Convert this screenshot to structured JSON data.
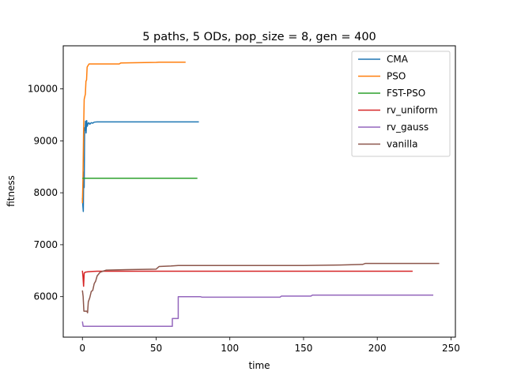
{
  "chart_data": {
    "type": "line",
    "title": "5 paths, 5 ODs, pop_size = 8, gen = 400",
    "xlabel": "time",
    "ylabel": "fitness",
    "xlim": [
      -13,
      253
    ],
    "ylim": [
      5220,
      10830
    ],
    "xticks": [
      0,
      50,
      100,
      150,
      200,
      250
    ],
    "yticks": [
      6000,
      7000,
      8000,
      9000,
      10000
    ],
    "grid": false,
    "legend_position": "top-right",
    "series": [
      {
        "name": "CMA",
        "color": "#1f77b4",
        "points": [
          [
            0,
            7900
          ],
          [
            0.3,
            7750
          ],
          [
            0.6,
            7640
          ],
          [
            0.9,
            8400
          ],
          [
            1.2,
            8100
          ],
          [
            1.5,
            9250
          ],
          [
            1.8,
            9200
          ],
          [
            2.1,
            9380
          ],
          [
            2.5,
            9150
          ],
          [
            2.9,
            9390
          ],
          [
            3.3,
            9280
          ],
          [
            3.8,
            9330
          ],
          [
            4.3,
            9350
          ],
          [
            5,
            9320
          ],
          [
            6,
            9350
          ],
          [
            7,
            9340
          ],
          [
            8,
            9360
          ],
          [
            10,
            9365
          ],
          [
            20,
            9365
          ],
          [
            40,
            9365
          ],
          [
            60,
            9365
          ],
          [
            79,
            9365
          ]
        ]
      },
      {
        "name": "PSO",
        "color": "#ff7f0e",
        "points": [
          [
            0,
            7800
          ],
          [
            0.4,
            8300
          ],
          [
            0.8,
            9200
          ],
          [
            1.2,
            9800
          ],
          [
            1.6,
            9850
          ],
          [
            2.0,
            9900
          ],
          [
            2.4,
            10150
          ],
          [
            2.8,
            10170
          ],
          [
            3.2,
            10420
          ],
          [
            3.6,
            10440
          ],
          [
            4.5,
            10480
          ],
          [
            10,
            10480
          ],
          [
            25,
            10480
          ],
          [
            26,
            10500
          ],
          [
            50,
            10510
          ],
          [
            52,
            10515
          ],
          [
            70,
            10515
          ]
        ]
      },
      {
        "name": "FST-PSO",
        "color": "#2ca02c",
        "points": [
          [
            0,
            8280
          ],
          [
            20,
            8280
          ],
          [
            40,
            8280
          ],
          [
            60,
            8280
          ],
          [
            78,
            8280
          ]
        ]
      },
      {
        "name": "rv_uniform",
        "color": "#d62728",
        "points": [
          [
            0,
            6500
          ],
          [
            0.4,
            6380
          ],
          [
            0.8,
            6200
          ],
          [
            1.2,
            6450
          ],
          [
            1.8,
            6470
          ],
          [
            4,
            6480
          ],
          [
            7,
            6485
          ],
          [
            10,
            6490
          ],
          [
            50,
            6490
          ],
          [
            100,
            6490
          ],
          [
            150,
            6490
          ],
          [
            200,
            6490
          ],
          [
            224,
            6490
          ]
        ]
      },
      {
        "name": "rv_gauss",
        "color": "#9467bd",
        "points": [
          [
            0,
            5520
          ],
          [
            0.5,
            5430
          ],
          [
            10,
            5430
          ],
          [
            30,
            5430
          ],
          [
            61,
            5430
          ],
          [
            61,
            5580
          ],
          [
            65,
            5580
          ],
          [
            65,
            6000
          ],
          [
            80,
            6000
          ],
          [
            81,
            5990
          ],
          [
            120,
            5990
          ],
          [
            134,
            5990
          ],
          [
            135,
            6010
          ],
          [
            155,
            6010
          ],
          [
            156,
            6030
          ],
          [
            200,
            6030
          ],
          [
            238,
            6030
          ]
        ]
      },
      {
        "name": "vanilla",
        "color": "#8c564b",
        "points": [
          [
            0,
            6120
          ],
          [
            0.5,
            6000
          ],
          [
            1,
            5720
          ],
          [
            3,
            5720
          ],
          [
            3.5,
            5690
          ],
          [
            4,
            5900
          ],
          [
            5,
            5980
          ],
          [
            6,
            6100
          ],
          [
            7,
            6120
          ],
          [
            8,
            6250
          ],
          [
            9,
            6300
          ],
          [
            10,
            6400
          ],
          [
            12,
            6470
          ],
          [
            14,
            6490
          ],
          [
            16,
            6510
          ],
          [
            30,
            6520
          ],
          [
            50,
            6530
          ],
          [
            52,
            6580
          ],
          [
            60,
            6590
          ],
          [
            65,
            6600
          ],
          [
            100,
            6600
          ],
          [
            150,
            6600
          ],
          [
            175,
            6610
          ],
          [
            190,
            6620
          ],
          [
            192,
            6640
          ],
          [
            220,
            6640
          ],
          [
            242,
            6640
          ]
        ]
      }
    ]
  }
}
